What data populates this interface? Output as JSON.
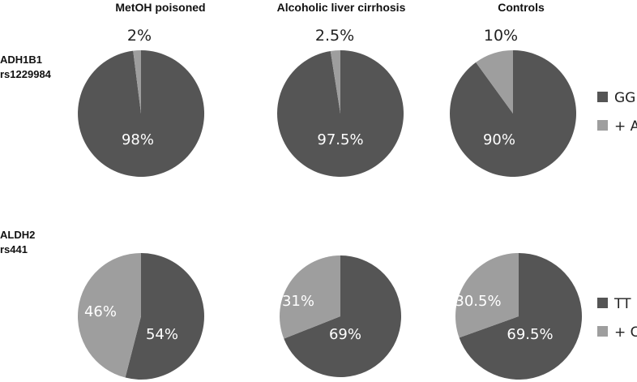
{
  "column_titles": [
    "MetOH poisoned",
    "Alcoholic liver cirrhosis",
    "Controls"
  ],
  "row_labels": [
    {
      "line1": "ADH1B1",
      "line2": "rs1229984"
    },
    {
      "line1": "ALDH2",
      "line2": "rs441"
    }
  ],
  "colors": {
    "dark": "#555555",
    "light": "#9e9e9e"
  },
  "chart_data": [
    {
      "type": "pie",
      "group": "MetOH poisoned",
      "gene": "ADH1B1 rs1229984",
      "labels": [
        "GG",
        "+ A"
      ],
      "values": [
        98,
        2
      ],
      "value_labels": [
        "98%",
        "2%"
      ],
      "colors": [
        "#555555",
        "#9e9e9e"
      ],
      "legend": null
    },
    {
      "type": "pie",
      "group": "Alcoholic liver cirrhosis",
      "gene": "ADH1B1 rs1229984",
      "labels": [
        "GG",
        "+ A"
      ],
      "values": [
        97.5,
        2.5
      ],
      "value_labels": [
        "97.5%",
        "2.5%"
      ],
      "colors": [
        "#555555",
        "#9e9e9e"
      ],
      "legend": null
    },
    {
      "type": "pie",
      "group": "Controls",
      "gene": "ADH1B1 rs1229984",
      "labels": [
        "GG",
        "+ A"
      ],
      "values": [
        90,
        10
      ],
      "value_labels": [
        "90%",
        "10%"
      ],
      "colors": [
        "#555555",
        "#9e9e9e"
      ],
      "legend": "right"
    },
    {
      "type": "pie",
      "group": "MetOH poisoned",
      "gene": "ALDH2 rs441",
      "labels": [
        "TT",
        "+ C"
      ],
      "values": [
        54,
        46
      ],
      "value_labels": [
        "54%",
        "46%"
      ],
      "colors": [
        "#555555",
        "#9e9e9e"
      ],
      "legend": null
    },
    {
      "type": "pie",
      "group": "Alcoholic liver cirrhosis",
      "gene": "ALDH2 rs441",
      "labels": [
        "TT",
        "+ C"
      ],
      "values": [
        69,
        31
      ],
      "value_labels": [
        "69%",
        "31%"
      ],
      "colors": [
        "#555555",
        "#9e9e9e"
      ],
      "legend": null
    },
    {
      "type": "pie",
      "group": "Controls",
      "gene": "ALDH2 rs441",
      "labels": [
        "TT",
        "+ C"
      ],
      "values": [
        69.5,
        30.5
      ],
      "value_labels": [
        "69.5%",
        "30.5%"
      ],
      "colors": [
        "#555555",
        "#9e9e9e"
      ],
      "legend": "right"
    }
  ]
}
